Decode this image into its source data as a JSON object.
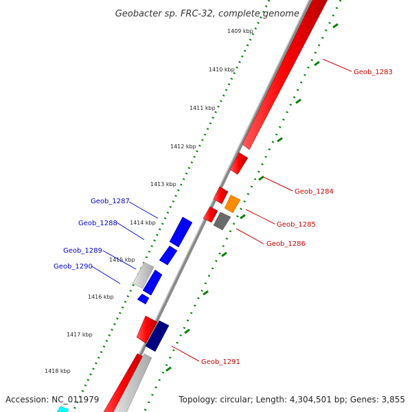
{
  "title": "Geobacter sp. FRC-32, complete genome",
  "accession": "Accession: NC_011979",
  "summary": "Topology: circular; Length: 4,304,501 bp; Genes: 3,855",
  "colors": {
    "forward_gene": "#ff0000",
    "reverse_gene": "#0000ff",
    "dark_blue_gene": "#000080",
    "orange_gene": "#ff8c00",
    "grey_gene": "#666666",
    "light_grey_gene": "#c8c8c8",
    "cyan_gene": "#00ffff",
    "backbone": "#808080",
    "tick_marks": "#008000",
    "forward_label": "#cc0000",
    "reverse_label": "#0000cc"
  },
  "ruler": {
    "unit": "kbp",
    "ticks": [
      {
        "kbp": 1409,
        "label": "1409 kbp"
      },
      {
        "kbp": 1410,
        "label": "1410 kbp"
      },
      {
        "kbp": 1411,
        "label": "1411 kbp"
      },
      {
        "kbp": 1412,
        "label": "1412 kbp"
      },
      {
        "kbp": 1413,
        "label": "1413 kbp"
      },
      {
        "kbp": 1414,
        "label": "1414 kbp"
      },
      {
        "kbp": 1415,
        "label": "1415 kbp"
      },
      {
        "kbp": 1416,
        "label": "1416 kbp"
      },
      {
        "kbp": 1417,
        "label": "1417 kbp"
      },
      {
        "kbp": 1418,
        "label": "1418 kbp"
      }
    ]
  },
  "gene_labels": {
    "forward": [
      "Geob_1283",
      "Geob_1284",
      "Geob_1285",
      "Geob_1286",
      "Geob_1291"
    ],
    "reverse": [
      "Geob_1287",
      "Geob_1288",
      "Geob_1289",
      "Geob_1290"
    ]
  }
}
